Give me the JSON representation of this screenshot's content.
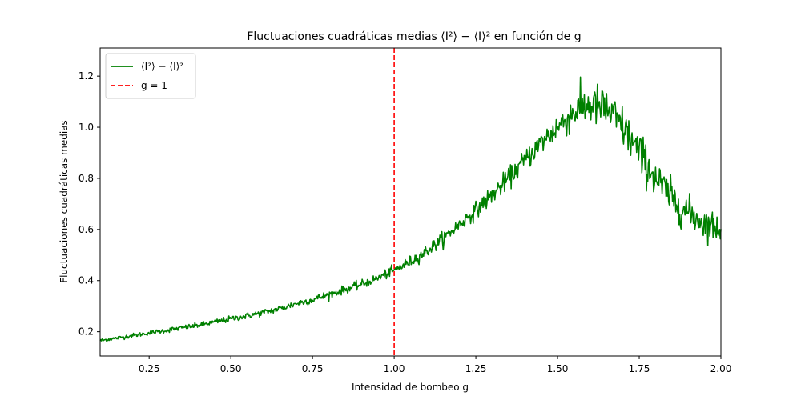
{
  "chart_data": {
    "type": "line",
    "title": "Fluctuaciones cuadráticas medias ⟨I²⟩ − ⟨I⟩² en función de g",
    "xlabel": "Intensidad de bombeo g",
    "ylabel": "Fluctuaciones cuadráticas medias",
    "xlim": [
      0.1,
      2.0
    ],
    "ylim": [
      0.105,
      1.31
    ],
    "xticks": [
      0.25,
      0.5,
      0.75,
      1.0,
      1.25,
      1.5,
      1.75,
      2.0
    ],
    "xtick_labels": [
      "0.25",
      "0.50",
      "0.75",
      "1.00",
      "1.25",
      "1.50",
      "1.75",
      "2.00"
    ],
    "yticks": [
      0.2,
      0.4,
      0.6,
      0.8,
      1.0,
      1.2
    ],
    "ytick_labels": [
      "0.2",
      "0.4",
      "0.6",
      "0.8",
      "1.0",
      "1.2"
    ],
    "grid": false,
    "legend_position": "top-left",
    "series": [
      {
        "name": "⟨I²⟩ − ⟨I⟩²",
        "style": "solid",
        "color": "#008000",
        "x": [
          0.1,
          0.15,
          0.2,
          0.25,
          0.3,
          0.35,
          0.4,
          0.45,
          0.5,
          0.55,
          0.6,
          0.65,
          0.7,
          0.75,
          0.8,
          0.85,
          0.9,
          0.95,
          1.0,
          1.05,
          1.1,
          1.15,
          1.2,
          1.25,
          1.3,
          1.35,
          1.4,
          1.45,
          1.5,
          1.55,
          1.6,
          1.65,
          1.7,
          1.75,
          1.8,
          1.85,
          1.9,
          1.95,
          2.0
        ],
        "y": [
          0.165,
          0.175,
          0.185,
          0.195,
          0.205,
          0.215,
          0.225,
          0.238,
          0.25,
          0.262,
          0.275,
          0.29,
          0.31,
          0.325,
          0.345,
          0.365,
          0.385,
          0.41,
          0.44,
          0.475,
          0.515,
          0.565,
          0.62,
          0.675,
          0.735,
          0.8,
          0.87,
          0.94,
          1.0,
          1.06,
          1.09,
          1.07,
          1.0,
          0.9,
          0.8,
          0.72,
          0.665,
          0.625,
          0.6
        ],
        "noise": [
          0.006,
          0.006,
          0.007,
          0.007,
          0.008,
          0.008,
          0.009,
          0.009,
          0.01,
          0.01,
          0.011,
          0.011,
          0.012,
          0.012,
          0.013,
          0.013,
          0.014,
          0.014,
          0.016,
          0.018,
          0.02,
          0.022,
          0.024,
          0.027,
          0.03,
          0.033,
          0.036,
          0.04,
          0.048,
          0.06,
          0.068,
          0.07,
          0.07,
          0.068,
          0.064,
          0.06,
          0.055,
          0.05,
          0.045
        ]
      },
      {
        "name": "g = 1",
        "style": "dashed",
        "color": "#ff0000",
        "vline_x": 1.0
      }
    ]
  }
}
